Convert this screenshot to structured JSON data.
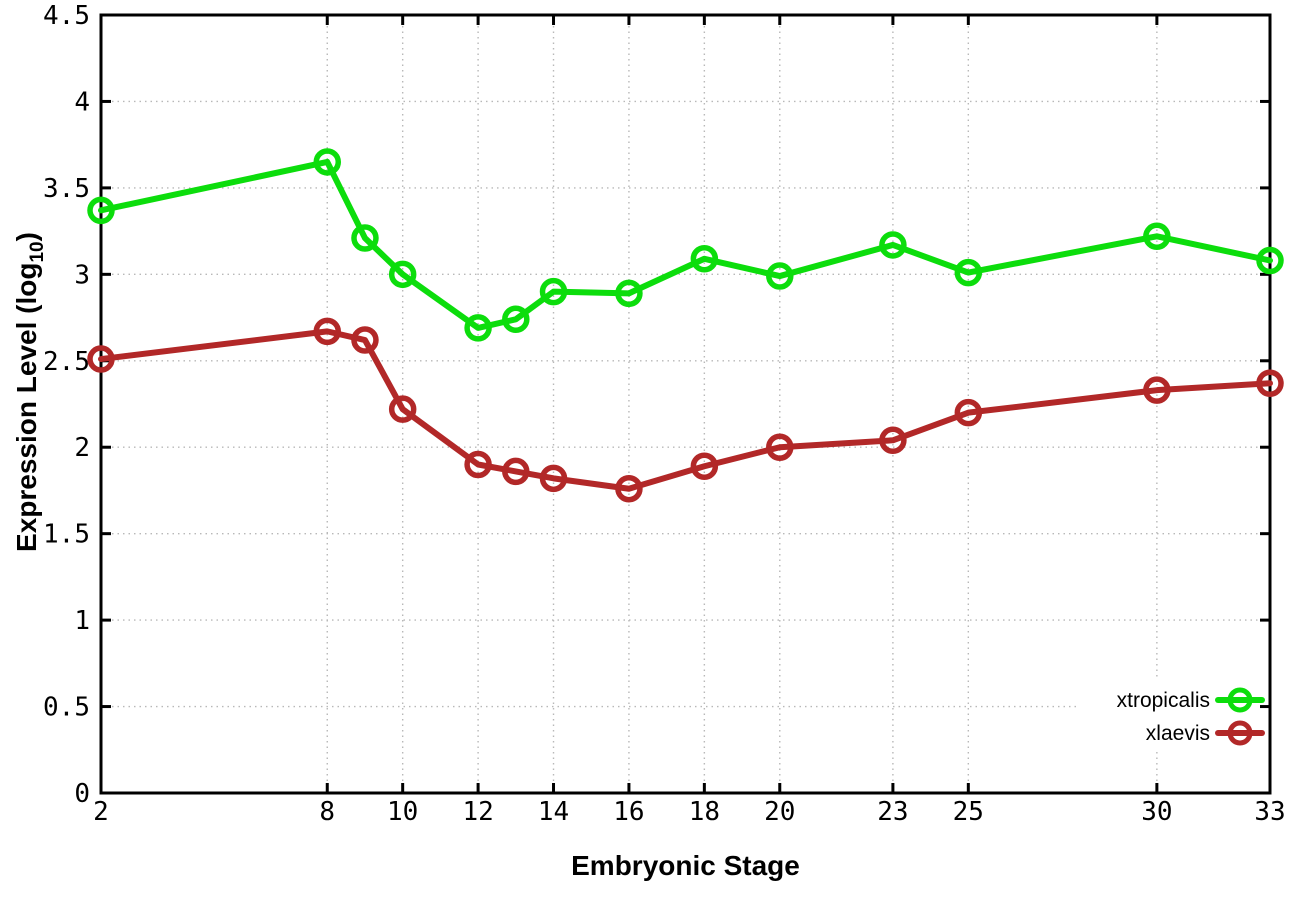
{
  "chart_data": {
    "type": "line",
    "title": "",
    "xlabel": "Embryonic Stage",
    "ylabel": "Expression Level (log10)",
    "ylabel_parts": {
      "main": "Expression Level (log",
      "sub": "10",
      "suffix": ")"
    },
    "x": [
      2,
      8,
      9,
      10,
      12,
      13,
      14,
      16,
      18,
      20,
      23,
      25,
      30,
      33
    ],
    "series": [
      {
        "name": "xtropicalis",
        "color": "#0cdd0c",
        "values": [
          3.37,
          3.65,
          3.21,
          3.0,
          2.69,
          2.74,
          2.9,
          2.89,
          3.09,
          2.99,
          3.17,
          3.01,
          3.22,
          3.08
        ]
      },
      {
        "name": "xlaevis",
        "color": "#b22828",
        "values": [
          2.51,
          2.67,
          2.62,
          2.22,
          1.9,
          1.86,
          1.82,
          1.76,
          1.89,
          2.0,
          2.04,
          2.2,
          2.33,
          2.37
        ]
      }
    ],
    "xlim": [
      2,
      33
    ],
    "ylim": [
      0,
      4.5
    ],
    "x_ticks": [
      2,
      8,
      10,
      12,
      14,
      16,
      18,
      20,
      23,
      25,
      30,
      33
    ],
    "x_tick_labels": [
      "2",
      "8",
      "10",
      "12",
      "14",
      "16",
      "18",
      "20",
      "23",
      "25",
      "30",
      "33"
    ],
    "y_ticks": [
      0,
      0.5,
      1,
      1.5,
      2,
      2.5,
      3,
      3.5,
      4,
      4.5
    ],
    "y_tick_labels": [
      "0",
      "0.5",
      "1",
      "1.5",
      "2",
      "2.5",
      "3",
      "3.5",
      "4",
      "4.5"
    ],
    "grid": true,
    "legend_position": "bottom-right",
    "marker": "open-circle"
  },
  "colors": {
    "background": "#ffffff",
    "border": "#000000",
    "grid": "#b8b8b8",
    "text": "#000000"
  }
}
